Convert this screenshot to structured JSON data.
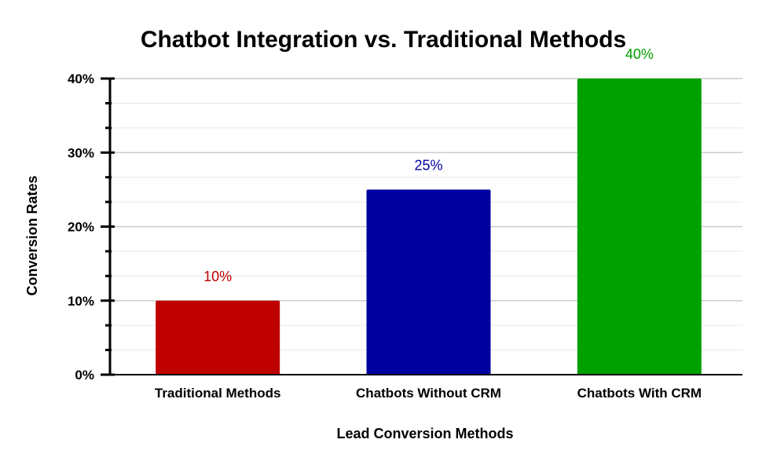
{
  "chart_data": {
    "type": "bar",
    "title": "Chatbot Integration vs. Traditional Methods",
    "xlabel": "Lead Conversion Methods",
    "ylabel": "Conversion Rates",
    "categories": [
      "Traditional Methods",
      "Chatbots Without CRM",
      "Chatbots With CRM"
    ],
    "values": [
      10,
      25,
      40
    ],
    "data_labels": [
      "10%",
      "25%",
      "40%"
    ],
    "colors": [
      "#bf0000",
      "#0000a0",
      "#00a000"
    ],
    "ylim": [
      0,
      40
    ],
    "yticks": [
      0,
      10,
      20,
      30,
      40
    ],
    "ytick_labels": [
      "0%",
      "10%",
      "20%",
      "30%",
      "40%"
    ],
    "grid": true,
    "legend": "none"
  }
}
